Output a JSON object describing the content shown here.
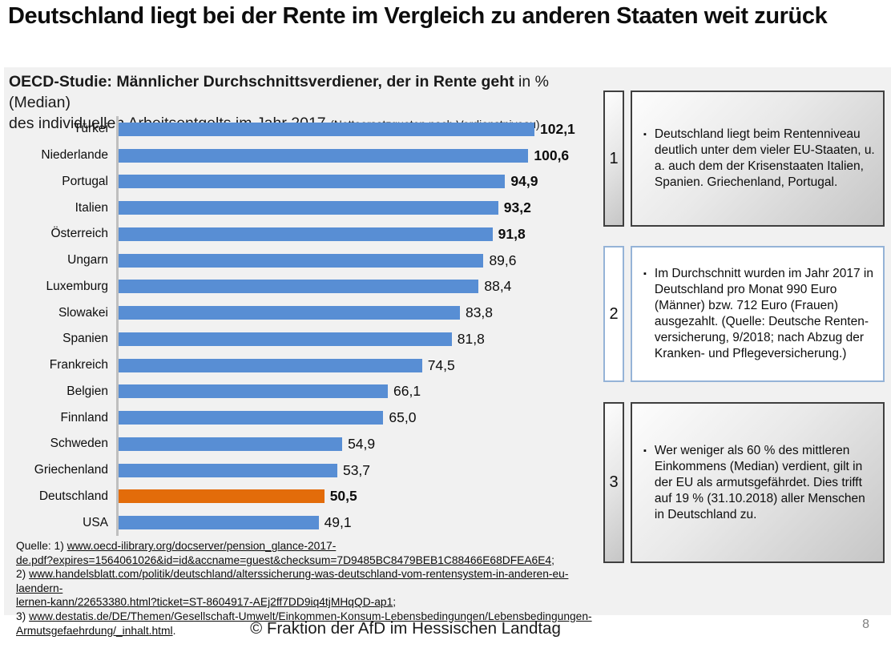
{
  "page": {
    "title": "Deutschland liegt bei der Rente im Vergleich zu anderen Staaten weit zurück",
    "footer_text": "© Fraktion der AfD im Hessischen Landtag",
    "page_number": "8"
  },
  "subtitle": {
    "line1_bold": "OECD-Studie: Männlicher Durchschnittsverdiener, der in Rente geht",
    "line1_regular": " in % (Median)",
    "line2": "des individuellen Arbeitsentgelts im Jahr 2017 ",
    "line2_small": "(Nettoersatzquoten nach Verdienstniveau)"
  },
  "chart_data": {
    "type": "bar",
    "orientation": "horizontal",
    "title": "OECD-Studie: Männlicher Durchschnittsverdiener, der in Rente geht in % (Median) des individuellen Arbeitsentgelts im Jahr 2017 (Nettoersatzquoten nach Verdienstniveau)",
    "categories": [
      "Türkei",
      "Niederlande",
      "Portugal",
      "Italien",
      "Österreich",
      "Ungarn",
      "Luxemburg",
      "Slowakei",
      "Spanien",
      "Frankreich",
      "Belgien",
      "Finnland",
      "Schweden",
      "Griechenland",
      "Deutschland",
      "USA"
    ],
    "values": [
      102.1,
      100.6,
      94.9,
      93.2,
      91.8,
      89.6,
      88.4,
      83.8,
      81.8,
      74.5,
      66.1,
      65.0,
      54.9,
      53.7,
      50.5,
      49.1
    ],
    "value_labels": [
      "102,1",
      "100,6",
      "94,9",
      "93,2",
      "91,8",
      "89,6",
      "88,4",
      "83,8",
      "81,8",
      "74,5",
      "66,1",
      "65,0",
      "54,9",
      "53,7",
      "50,5",
      "49,1"
    ],
    "bold_value_labels": [
      true,
      true,
      true,
      true,
      true,
      false,
      false,
      false,
      false,
      false,
      false,
      false,
      false,
      false,
      true,
      false
    ],
    "highlight_category": "Deutschland",
    "bar_color": "#588ed4",
    "highlight_color": "#e36c0a",
    "axis_color": "#bfbfbf",
    "xlim": [
      0,
      110
    ],
    "grid": false,
    "legend": false
  },
  "notes": [
    {
      "number": "1",
      "style": "gray",
      "text": "Deutschland liegt beim Rentenniveau deutlich unter dem vieler EU-Staaten, u. a. auch dem der Krisenstaaten Italien, Spanien. Griechenland, Portugal."
    },
    {
      "number": "2",
      "style": "white",
      "text": "Im Durchschnitt wurden im Jahr 2017 in Deutschland pro Monat 990 Euro (Männer) bzw. 712 Euro (Frauen) ausgezahlt. (Quelle: Deutsche Renten-versicherung, 9/2018; nach Abzug der Kranken- und Pflegeversicherung.)"
    },
    {
      "number": "3",
      "style": "gray",
      "text": "Wer weniger als 60 % des mittleren Einkommens (Median) verdient, gilt in der EU als armutsgefährdet. Dies trifft auf 19 % (31.10.2018) aller Menschen in Deutschland zu."
    }
  ],
  "sources": {
    "lines": [
      {
        "prefix": "Quelle: 1) ",
        "link": "www.oecd-ilibrary.org/docserver/pension_glance-2017-",
        "suffix": ""
      },
      {
        "prefix": "",
        "link": "de.pdf?expires=1564061026&id=id&accname=guest&checksum=7D9485BC8479BEB1C88466E68DFEA6E4",
        "suffix": ";"
      },
      {
        "prefix": "2) ",
        "link": "www.handelsblatt.com/politik/deutschland/alterssicherung-was-deutschland-vom-rentensystem-in-anderen-eu-laendern-",
        "suffix": ""
      },
      {
        "prefix": "",
        "link": "lernen-kann/22653380.html?ticket=ST-8604917-AEj2ff7DD9iq4tjMHqQD-ap1",
        "suffix": ";"
      },
      {
        "prefix": "3) ",
        "link": "www.destatis.de/DE/Themen/Gesellschaft-Umwelt/Einkommen-Konsum-Lebensbedingungen/Lebensbedingungen-Armutsgefaehrdung/_inhalt.html",
        "suffix": "."
      }
    ]
  }
}
